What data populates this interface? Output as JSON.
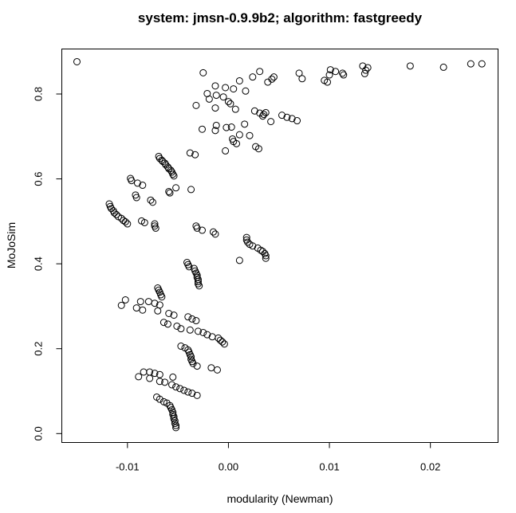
{
  "chart_data": {
    "type": "scatter",
    "title": "system: jmsn-0.9.9b2; algorithm: fastgreedy",
    "xlabel": "modularity (Newman)",
    "ylabel": "MoJoSim",
    "xlim": [
      -0.0165,
      0.0267
    ],
    "ylim": [
      -0.021,
      0.906
    ],
    "x_ticks": [
      -0.01,
      0.0,
      0.01,
      0.02
    ],
    "x_tick_labels": [
      "-0.01",
      "0.00",
      "0.01",
      "0.02"
    ],
    "y_ticks": [
      0.0,
      0.2,
      0.4,
      0.6,
      0.8
    ],
    "y_tick_labels": [
      "0.0",
      "0.2",
      "0.4",
      "0.6",
      "0.8"
    ],
    "grid": false,
    "marker": "open-circle",
    "points": [
      [
        -0.015,
        0.876
      ],
      [
        0.018,
        0.866
      ],
      [
        0.0213,
        0.863
      ],
      [
        0.024,
        0.871
      ],
      [
        0.0251,
        0.871
      ],
      [
        0.0133,
        0.866
      ],
      [
        0.0135,
        0.848
      ],
      [
        0.0136,
        0.856
      ],
      [
        0.0138,
        0.862
      ],
      [
        0.0113,
        0.849
      ],
      [
        0.0114,
        0.845
      ],
      [
        0.0101,
        0.857
      ],
      [
        0.01,
        0.845
      ],
      [
        0.0106,
        0.853
      ],
      [
        0.0095,
        0.832
      ],
      [
        0.0098,
        0.828
      ],
      [
        0.007,
        0.849
      ],
      [
        0.0073,
        0.836
      ],
      [
        0.0043,
        0.835
      ],
      [
        0.0045,
        0.84
      ],
      [
        0.0039,
        0.828
      ],
      [
        0.0031,
        0.853
      ],
      [
        0.0024,
        0.84
      ],
      [
        0.0017,
        0.807
      ],
      [
        0.0011,
        0.831
      ],
      [
        0.0005,
        0.812
      ],
      [
        -0.0003,
        0.815
      ],
      [
        -0.0013,
        0.819
      ],
      [
        -0.0025,
        0.85
      ],
      [
        -0.0021,
        0.801
      ],
      [
        -0.0019,
        0.788
      ],
      [
        -0.0012,
        0.797
      ],
      [
        -0.0005,
        0.793
      ],
      [
        0.0,
        0.782
      ],
      [
        0.0002,
        0.777
      ],
      [
        -0.0032,
        0.773
      ],
      [
        -0.0013,
        0.767
      ],
      [
        0.0007,
        0.764
      ],
      [
        0.0026,
        0.76
      ],
      [
        0.0031,
        0.755
      ],
      [
        0.0035,
        0.752
      ],
      [
        0.0034,
        0.748
      ],
      [
        0.0037,
        0.756
      ],
      [
        0.0042,
        0.735
      ],
      [
        0.0053,
        0.75
      ],
      [
        0.0058,
        0.745
      ],
      [
        0.0063,
        0.742
      ],
      [
        0.0068,
        0.737
      ],
      [
        -0.0026,
        0.717
      ],
      [
        -0.0013,
        0.714
      ],
      [
        -0.0012,
        0.726
      ],
      [
        -0.0002,
        0.721
      ],
      [
        0.0003,
        0.722
      ],
      [
        0.0016,
        0.729
      ],
      [
        0.0021,
        0.702
      ],
      [
        0.0011,
        0.704
      ],
      [
        0.0004,
        0.694
      ],
      [
        0.0005,
        0.688
      ],
      [
        0.0008,
        0.683
      ],
      [
        -0.0003,
        0.666
      ],
      [
        0.0027,
        0.676
      ],
      [
        0.003,
        0.671
      ],
      [
        -0.0038,
        0.661
      ],
      [
        -0.0033,
        0.657
      ],
      [
        -0.0069,
        0.653
      ],
      [
        -0.0068,
        0.648
      ],
      [
        -0.0066,
        0.644
      ],
      [
        -0.0065,
        0.641
      ],
      [
        -0.0063,
        0.637
      ],
      [
        -0.0062,
        0.633
      ],
      [
        -0.006,
        0.628
      ],
      [
        -0.0059,
        0.624
      ],
      [
        -0.0057,
        0.62
      ],
      [
        -0.0056,
        0.616
      ],
      [
        -0.0055,
        0.611
      ],
      [
        -0.0054,
        0.607
      ],
      [
        -0.0097,
        0.601
      ],
      [
        -0.0096,
        0.596
      ],
      [
        -0.009,
        0.59
      ],
      [
        -0.0085,
        0.585
      ],
      [
        -0.0052,
        0.579
      ],
      [
        -0.0037,
        0.575
      ],
      [
        -0.0059,
        0.57
      ],
      [
        -0.0058,
        0.567
      ],
      [
        -0.0092,
        0.562
      ],
      [
        -0.0091,
        0.556
      ],
      [
        -0.0077,
        0.55
      ],
      [
        -0.0075,
        0.545
      ],
      [
        -0.0118,
        0.541
      ],
      [
        -0.0117,
        0.535
      ],
      [
        -0.0116,
        0.53
      ],
      [
        -0.0114,
        0.525
      ],
      [
        -0.0113,
        0.52
      ],
      [
        -0.0111,
        0.516
      ],
      [
        -0.0109,
        0.511
      ],
      [
        -0.0106,
        0.507
      ],
      [
        -0.0104,
        0.502
      ],
      [
        -0.0102,
        0.499
      ],
      [
        -0.01,
        0.494
      ],
      [
        -0.0086,
        0.501
      ],
      [
        -0.0083,
        0.497
      ],
      [
        -0.0073,
        0.494
      ],
      [
        -0.0073,
        0.489
      ],
      [
        -0.0072,
        0.484
      ],
      [
        -0.0032,
        0.489
      ],
      [
        -0.0031,
        0.484
      ],
      [
        -0.0026,
        0.479
      ],
      [
        -0.0015,
        0.475
      ],
      [
        -0.0013,
        0.47
      ],
      [
        0.0018,
        0.462
      ],
      [
        0.0018,
        0.456
      ],
      [
        0.0019,
        0.451
      ],
      [
        0.0021,
        0.446
      ],
      [
        0.0024,
        0.442
      ],
      [
        0.0029,
        0.437
      ],
      [
        0.0032,
        0.432
      ],
      [
        0.0034,
        0.429
      ],
      [
        0.0036,
        0.424
      ],
      [
        0.0037,
        0.419
      ],
      [
        0.0037,
        0.413
      ],
      [
        0.0011,
        0.408
      ],
      [
        -0.0041,
        0.403
      ],
      [
        -0.004,
        0.398
      ],
      [
        -0.0039,
        0.393
      ],
      [
        -0.0034,
        0.389
      ],
      [
        -0.0033,
        0.383
      ],
      [
        -0.0032,
        0.378
      ],
      [
        -0.0031,
        0.373
      ],
      [
        -0.0031,
        0.368
      ],
      [
        -0.003,
        0.363
      ],
      [
        -0.003,
        0.358
      ],
      [
        -0.003,
        0.353
      ],
      [
        -0.0029,
        0.348
      ],
      [
        -0.007,
        0.343
      ],
      [
        -0.0069,
        0.338
      ],
      [
        -0.0068,
        0.333
      ],
      [
        -0.0067,
        0.327
      ],
      [
        -0.0066,
        0.322
      ],
      [
        -0.0102,
        0.315
      ],
      [
        -0.0106,
        0.302
      ],
      [
        -0.0087,
        0.311
      ],
      [
        -0.0079,
        0.311
      ],
      [
        -0.0073,
        0.307
      ],
      [
        -0.0068,
        0.303
      ],
      [
        -0.0091,
        0.296
      ],
      [
        -0.0085,
        0.291
      ],
      [
        -0.007,
        0.289
      ],
      [
        -0.0059,
        0.283
      ],
      [
        -0.0054,
        0.279
      ],
      [
        -0.004,
        0.275
      ],
      [
        -0.0036,
        0.27
      ],
      [
        -0.0032,
        0.266
      ],
      [
        -0.0064,
        0.262
      ],
      [
        -0.006,
        0.258
      ],
      [
        -0.0051,
        0.253
      ],
      [
        -0.0047,
        0.247
      ],
      [
        -0.0038,
        0.244
      ],
      [
        -0.003,
        0.241
      ],
      [
        -0.0025,
        0.238
      ],
      [
        -0.0021,
        0.233
      ],
      [
        -0.0016,
        0.228
      ],
      [
        -0.001,
        0.225
      ],
      [
        -0.0008,
        0.22
      ],
      [
        -0.0006,
        0.216
      ],
      [
        -0.0004,
        0.211
      ],
      [
        -0.0047,
        0.206
      ],
      [
        -0.0043,
        0.202
      ],
      [
        -0.004,
        0.197
      ],
      [
        -0.0039,
        0.192
      ],
      [
        -0.0038,
        0.186
      ],
      [
        -0.0037,
        0.181
      ],
      [
        -0.0037,
        0.175
      ],
      [
        -0.0036,
        0.17
      ],
      [
        -0.0035,
        0.165
      ],
      [
        -0.0031,
        0.159
      ],
      [
        -0.0017,
        0.155
      ],
      [
        -0.0011,
        0.15
      ],
      [
        -0.0084,
        0.145
      ],
      [
        -0.0078,
        0.145
      ],
      [
        -0.0073,
        0.142
      ],
      [
        -0.0068,
        0.139
      ],
      [
        -0.0089,
        0.134
      ],
      [
        -0.0078,
        0.13
      ],
      [
        -0.0055,
        0.133
      ],
      [
        -0.0068,
        0.123
      ],
      [
        -0.0063,
        0.121
      ],
      [
        -0.0056,
        0.115
      ],
      [
        -0.0052,
        0.11
      ],
      [
        -0.0048,
        0.106
      ],
      [
        -0.0044,
        0.102
      ],
      [
        -0.004,
        0.098
      ],
      [
        -0.0036,
        0.095
      ],
      [
        -0.0031,
        0.09
      ],
      [
        -0.0071,
        0.086
      ],
      [
        -0.0068,
        0.081
      ],
      [
        -0.0064,
        0.075
      ],
      [
        -0.0061,
        0.072
      ],
      [
        -0.0058,
        0.066
      ],
      [
        -0.0057,
        0.061
      ],
      [
        -0.0056,
        0.056
      ],
      [
        -0.0055,
        0.05
      ],
      [
        -0.0055,
        0.045
      ],
      [
        -0.0054,
        0.04
      ],
      [
        -0.0054,
        0.035
      ],
      [
        -0.0053,
        0.03
      ],
      [
        -0.0053,
        0.024
      ],
      [
        -0.0052,
        0.019
      ],
      [
        -0.0052,
        0.014
      ]
    ]
  }
}
